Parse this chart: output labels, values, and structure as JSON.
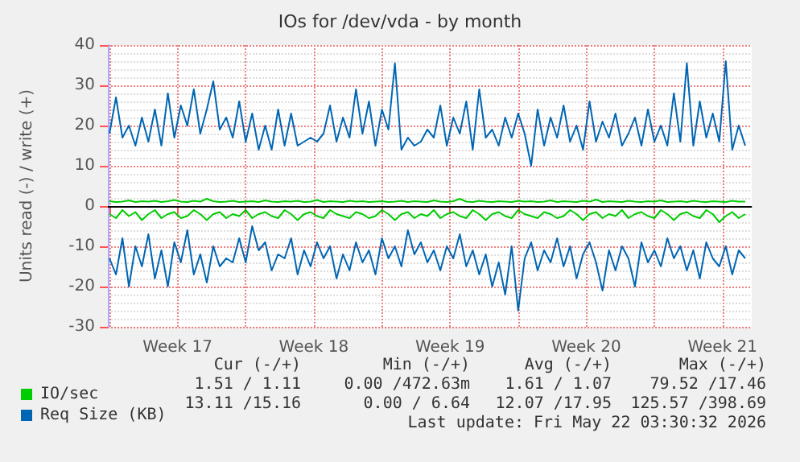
{
  "chart_data": {
    "type": "line",
    "title": "IOs for /dev/vda - by month",
    "ylabel": "Units read (-) / write (+)",
    "x": [
      "2026-04-20T00:00",
      "2026-04-20T08:00",
      "2026-04-20T16:00",
      "2026-04-21T00:00",
      "2026-04-21T08:00",
      "2026-04-21T16:00",
      "2026-04-22T00:00",
      "2026-04-22T08:00",
      "2026-04-22T16:00",
      "2026-04-23T00:00",
      "2026-04-23T08:00",
      "2026-04-23T16:00",
      "2026-04-24T00:00",
      "2026-04-24T08:00",
      "2026-04-24T16:00",
      "2026-04-25T00:00",
      "2026-04-25T08:00",
      "2026-04-25T16:00",
      "2026-04-26T00:00",
      "2026-04-26T08:00",
      "2026-04-26T16:00",
      "2026-04-27T00:00",
      "2026-04-27T08:00",
      "2026-04-27T16:00",
      "2026-04-28T00:00",
      "2026-04-28T08:00",
      "2026-04-28T16:00",
      "2026-04-29T00:00",
      "2026-04-29T08:00",
      "2026-04-29T16:00",
      "2026-04-30T00:00",
      "2026-04-30T08:00",
      "2026-04-30T16:00",
      "2026-05-01T00:00",
      "2026-05-01T08:00",
      "2026-05-01T16:00",
      "2026-05-02T00:00",
      "2026-05-02T08:00",
      "2026-05-02T16:00",
      "2026-05-03T00:00",
      "2026-05-03T08:00",
      "2026-05-03T16:00",
      "2026-05-04T00:00",
      "2026-05-04T08:00",
      "2026-05-04T16:00",
      "2026-05-05T00:00",
      "2026-05-05T08:00",
      "2026-05-05T16:00",
      "2026-05-06T00:00",
      "2026-05-06T08:00",
      "2026-05-06T16:00",
      "2026-05-07T00:00",
      "2026-05-07T08:00",
      "2026-05-07T16:00",
      "2026-05-08T00:00",
      "2026-05-08T08:00",
      "2026-05-08T16:00",
      "2026-05-09T00:00",
      "2026-05-09T08:00",
      "2026-05-09T16:00",
      "2026-05-10T00:00",
      "2026-05-10T08:00",
      "2026-05-10T16:00",
      "2026-05-11T00:00",
      "2026-05-11T08:00",
      "2026-05-11T16:00",
      "2026-05-12T00:00",
      "2026-05-12T08:00",
      "2026-05-12T16:00",
      "2026-05-13T00:00",
      "2026-05-13T08:00",
      "2026-05-13T16:00",
      "2026-05-14T00:00",
      "2026-05-14T08:00",
      "2026-05-14T16:00",
      "2026-05-15T00:00",
      "2026-05-15T08:00",
      "2026-05-15T16:00",
      "2026-05-16T00:00",
      "2026-05-16T08:00",
      "2026-05-16T16:00",
      "2026-05-17T00:00",
      "2026-05-17T08:00",
      "2026-05-17T16:00",
      "2026-05-18T00:00",
      "2026-05-18T08:00",
      "2026-05-18T16:00",
      "2026-05-19T00:00",
      "2026-05-19T08:00",
      "2026-05-19T16:00",
      "2026-05-20T00:00",
      "2026-05-20T08:00",
      "2026-05-20T16:00",
      "2026-05-21T00:00",
      "2026-05-21T08:00",
      "2026-05-21T16:00",
      "2026-05-22T00:00",
      "2026-05-22T08:00",
      "2026-05-22T16:00"
    ],
    "series": [
      {
        "name": "IO/sec",
        "color": "#00cc00",
        "values": [
          1.2,
          1.0,
          1.1,
          1.4,
          1.0,
          1.2,
          1.1,
          1.3,
          1.0,
          1.2,
          1.5,
          1.1,
          1.0,
          1.3,
          1.1,
          1.8,
          1.2,
          1.0,
          1.1,
          1.3,
          1.0,
          1.1,
          1.2,
          1.0,
          1.4,
          1.1,
          1.0,
          1.2,
          1.1,
          1.3,
          1.0,
          1.1,
          1.5,
          1.0,
          1.2,
          1.1,
          1.0,
          1.3,
          1.1,
          1.2,
          1.0,
          1.1,
          1.2,
          1.0,
          1.1,
          1.3,
          1.0,
          1.2,
          1.1,
          1.0,
          1.4,
          1.1,
          1.0,
          1.2,
          1.8,
          1.1,
          1.0,
          1.3,
          1.1,
          1.0,
          1.2,
          1.1,
          1.0,
          1.3,
          1.1,
          1.2,
          1.0,
          1.1,
          1.4,
          1.0,
          1.2,
          1.1,
          1.0,
          1.3,
          1.1,
          1.6,
          1.0,
          1.2,
          1.1,
          1.0,
          1.3,
          1.1,
          1.0,
          1.2,
          1.1,
          1.4,
          1.0,
          1.1,
          1.2,
          1.0,
          1.3,
          1.1,
          1.0,
          1.2,
          1.1,
          1.0,
          1.3,
          1.1,
          1.1
        ]
      },
      {
        "color": "#00cc00",
        "values": [
          -2,
          -3,
          -1,
          -2.5,
          -1.5,
          -3.5,
          -2,
          -1,
          -3,
          -2,
          -1.5,
          -3,
          -2.5,
          -1,
          -2,
          -3.5,
          -2,
          -1.5,
          -3,
          -2,
          -2.5,
          -1,
          -3,
          -2,
          -1.5,
          -2.5,
          -3,
          -1,
          -2,
          -3.5,
          -2,
          -1.5,
          -2.5,
          -3,
          -1,
          -2,
          -2.5,
          -3,
          -1.5,
          -2,
          -3,
          -2.5,
          -1,
          -2,
          -3.5,
          -2,
          -1.5,
          -3,
          -2,
          -2.5,
          -1,
          -3,
          -2,
          -1.5,
          -2.5,
          -3,
          -1,
          -2,
          -3.5,
          -2,
          -1.5,
          -2.5,
          -3,
          -1,
          -2,
          -2.5,
          -3,
          -1.5,
          -2,
          -3,
          -2.5,
          -1,
          -2,
          -3.5,
          -2,
          -1.5,
          -3,
          -2,
          -2.5,
          -1,
          -3,
          -2,
          -1.5,
          -2.5,
          -3,
          -1,
          -2,
          -3.5,
          -2,
          -1.5,
          -2.5,
          -3,
          -1,
          -2,
          -4,
          -2.5,
          -1.5,
          -3,
          -2
        ]
      },
      {
        "name": "Req Size (KB)",
        "color": "#0066b3",
        "values": [
          18,
          27,
          17,
          20,
          15,
          22,
          16,
          24,
          15,
          28,
          17,
          25,
          20,
          29,
          18,
          24,
          31,
          19,
          22,
          17,
          26,
          16,
          23,
          14,
          20,
          14,
          24,
          15,
          23,
          15,
          16,
          17,
          16,
          18,
          25,
          16,
          22,
          17,
          29,
          18,
          26,
          15,
          24,
          19,
          35.5,
          14,
          17,
          15,
          16,
          19,
          17,
          25,
          15,
          22,
          18,
          26,
          14,
          29,
          17,
          19,
          15,
          22,
          17,
          23,
          18,
          10,
          24,
          15,
          22,
          17,
          25,
          16,
          20,
          14,
          26,
          16,
          21,
          17,
          23,
          15,
          18,
          22,
          15,
          24,
          16,
          20,
          15,
          28,
          16,
          35.5,
          15,
          26,
          17,
          23,
          16,
          36,
          14,
          20,
          15
        ]
      },
      {
        "color": "#0066b3",
        "values": [
          -13,
          -17,
          -8,
          -20,
          -10,
          -15,
          -7,
          -18,
          -11,
          -20,
          -9,
          -14,
          -6,
          -17,
          -12,
          -19,
          -10,
          -15,
          -13,
          -14,
          -8,
          -14,
          -5,
          -11,
          -9,
          -16,
          -12,
          -13,
          -8,
          -17,
          -11,
          -15,
          -9,
          -13,
          -10,
          -18,
          -12,
          -16,
          -9,
          -14,
          -11,
          -17,
          -8,
          -13,
          -10,
          -15,
          -6,
          -12,
          -9,
          -14,
          -11,
          -16,
          -10,
          -13,
          -7,
          -15,
          -11,
          -17,
          -12,
          -20,
          -14,
          -22,
          -10,
          -26,
          -13,
          -9,
          -16,
          -11,
          -14,
          -8,
          -15,
          -10,
          -18,
          -12,
          -9,
          -14,
          -21,
          -11,
          -16,
          -10,
          -13,
          -20,
          -9,
          -14,
          -11,
          -15,
          -8,
          -13,
          -10,
          -16,
          -11,
          -18,
          -9,
          -13,
          -15,
          -10,
          -17,
          -11,
          -13
        ]
      }
    ],
    "xlim": [
      "2026-04-19T22:00",
      "2026-05-23T00:00"
    ],
    "xticks": [
      {
        "value": "2026-04-20T00:00",
        "label": null
      },
      {
        "value": "2026-04-23T12:00",
        "label": "Week 17"
      },
      {
        "value": "2026-04-27T00:00",
        "label": null
      },
      {
        "value": "2026-04-30T12:00",
        "label": "Week 18"
      },
      {
        "value": "2026-05-04T00:00",
        "label": null
      },
      {
        "value": "2026-05-07T12:00",
        "label": "Week 19"
      },
      {
        "value": "2026-05-11T00:00",
        "label": null
      },
      {
        "value": "2026-05-14T12:00",
        "label": "Week 20"
      },
      {
        "value": "2026-05-18T00:00",
        "label": null
      },
      {
        "value": "2026-05-21T12:00",
        "label": "Week 21"
      }
    ],
    "ylim": [
      -30,
      40
    ],
    "yticks": [
      -30,
      -20,
      -10,
      0,
      10,
      20,
      30,
      40
    ],
    "ref_lines": [
      {
        "axis": "y",
        "value": 0,
        "color": "#000000"
      }
    ],
    "grid": true,
    "legend": "bottom left",
    "marker": "none",
    "line_style": "solid",
    "annotations": [
      "Cur (-/+)",
      "Min (-/+)",
      "Avg (-/+)",
      "Max (-/+)",
      "1.51 / 1.11",
      "0.00 /472.63m",
      "1.61 / 1.07",
      "79.52 /17.46",
      "13.11 /15.16",
      "0.00 / 6.64",
      "12.07 /17.95",
      "125.57 /398.69",
      "Last update: Fri May 22 03:30:32 2026"
    ]
  }
}
